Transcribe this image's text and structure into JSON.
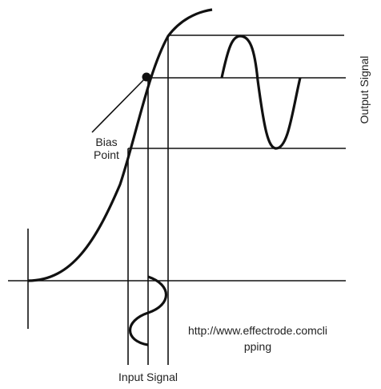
{
  "labels": {
    "bias_point": [
      "Bias",
      "Point"
    ],
    "output_signal": "Output Signal",
    "input_signal": "Input Signal",
    "url": [
      "http://www.effectrode.comcli",
      "pping"
    ]
  }
}
